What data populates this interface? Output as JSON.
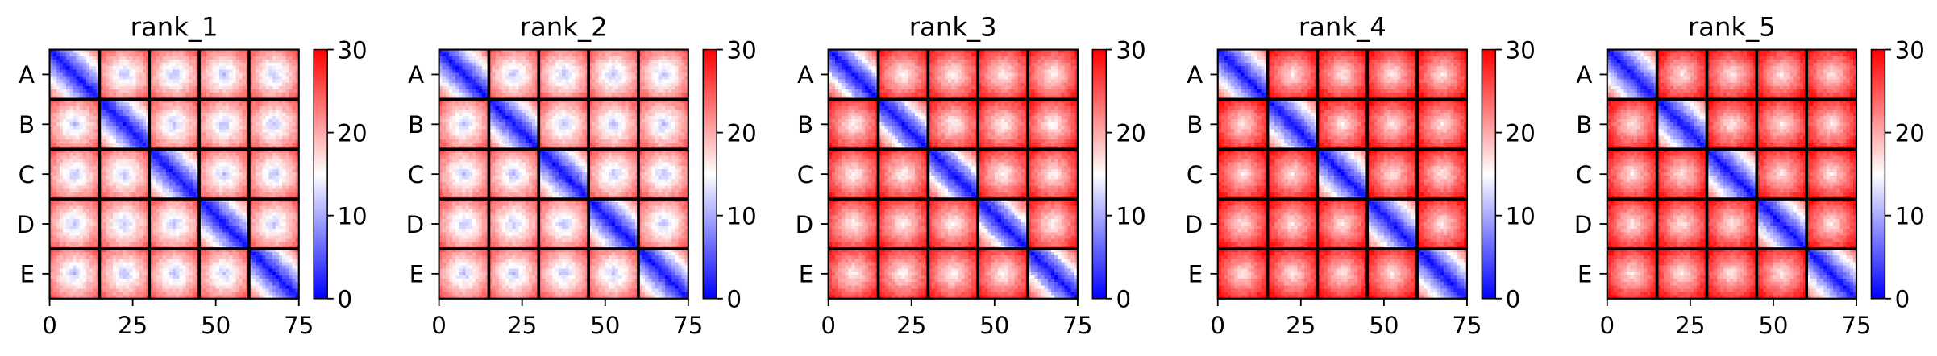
{
  "chart_data": {
    "type": "heatmap",
    "subtype": "pae-matrix-grid",
    "panels": [
      {
        "title": "rank_1",
        "tone": "blue"
      },
      {
        "title": "rank_2",
        "tone": "blue"
      },
      {
        "title": "rank_3",
        "tone": "mixed"
      },
      {
        "title": "rank_4",
        "tone": "red"
      },
      {
        "title": "rank_5",
        "tone": "red"
      }
    ],
    "n_residues": 75,
    "chains": [
      "A",
      "B",
      "C",
      "D",
      "E"
    ],
    "chain_boundaries": [
      15,
      30,
      45,
      60
    ],
    "xticks": [
      0,
      25,
      50,
      75
    ],
    "xtick_labels": [
      "0",
      "25",
      "50",
      "75"
    ],
    "xlim": [
      0,
      75
    ],
    "colorbar": {
      "range": [
        0,
        30
      ],
      "ticks": [
        0,
        10,
        20,
        30
      ],
      "tick_labels": [
        "0",
        "10",
        "20",
        "30"
      ],
      "colormap": "bwr"
    },
    "colors": {
      "low": "#0000ff",
      "mid": "#ffffff",
      "high": "#ff0000",
      "boundary": "#000000"
    },
    "grid": false,
    "legend": "none"
  }
}
